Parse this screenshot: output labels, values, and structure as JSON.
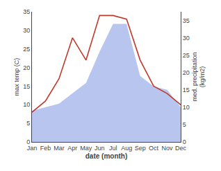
{
  "chart_data": {
    "type": "line",
    "xlabel": "date (month)",
    "ylabel": "max temp (C)",
    "y2label": "med. precipitation\n(kg/m2)",
    "categories": [
      "Jan",
      "Feb",
      "Mar",
      "Apr",
      "May",
      "Jun",
      "Jul",
      "Aug",
      "Sep",
      "Oct",
      "Nov",
      "Dec"
    ],
    "series": [
      {
        "type": "area",
        "axis": "y2",
        "color": "#b8c5ee",
        "values": [
          9,
          10,
          11,
          14,
          17,
          26,
          34,
          34,
          19,
          16,
          15,
          10
        ]
      },
      {
        "type": "line",
        "color": "#c0392b",
        "values": [
          8,
          11,
          17,
          28,
          22,
          34,
          34,
          33,
          22,
          15,
          13,
          10
        ]
      }
    ],
    "ylim": [
      0,
      35
    ],
    "yticks": [
      0,
      5,
      10,
      15,
      20,
      25,
      30,
      35
    ],
    "y2lim": [
      0,
      37.5
    ],
    "y2ticks": [
      0,
      5,
      10,
      15,
      20,
      25,
      30,
      35
    ],
    "grid": false,
    "background_color": "#ffffff"
  }
}
